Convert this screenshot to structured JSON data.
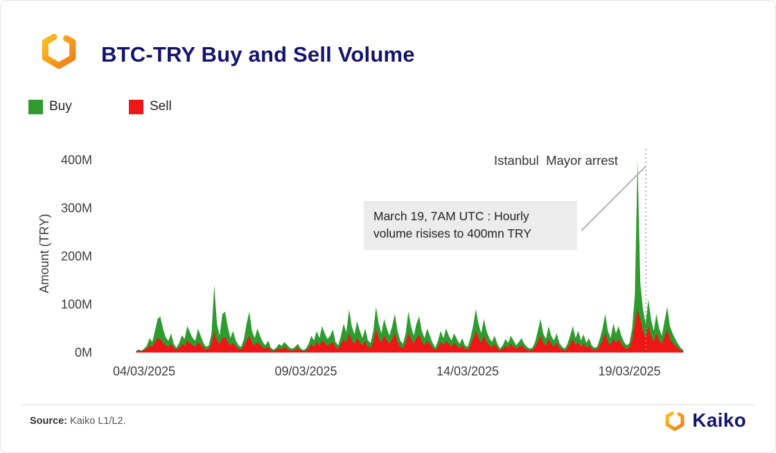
{
  "header": {
    "title": "BTC-TRY Buy and Sell Volume"
  },
  "legend": {
    "buy": {
      "label": "Buy",
      "color": "#2e9b2e"
    },
    "sell": {
      "label": "Sell",
      "color": "#ee1616"
    }
  },
  "annotations": {
    "arrest_label": "Istanbul  Mayor arrest",
    "callout": "March 19, 7AM UTC : Hourly\nvolume risises to 400mn TRY"
  },
  "footer": {
    "source_label": "Source:",
    "source_text": " Kaiko L1/L2.",
    "brand": "Kaiko"
  },
  "chart_data": {
    "type": "area",
    "title": "BTC-TRY Buy and Sell Volume",
    "xlabel": "",
    "ylabel": "Amount (TRY)",
    "unit": "millions of TRY, hourly volume",
    "ylim": [
      0,
      430
    ],
    "grid": false,
    "legend_position": "top-left",
    "yticks": [
      {
        "value": 0,
        "label": "0M"
      },
      {
        "value": 100,
        "label": "100M"
      },
      {
        "value": 200,
        "label": "200M"
      },
      {
        "value": 300,
        "label": "300M"
      },
      {
        "value": 400,
        "label": "400M"
      }
    ],
    "xticks": [
      {
        "day": 4,
        "label": "04/03/2025"
      },
      {
        "day": 9,
        "label": "09/03/2025"
      },
      {
        "day": 14,
        "label": "14/03/2025"
      },
      {
        "day": 19,
        "label": "19/03/2025"
      }
    ],
    "x_start_day": 3.75,
    "points_per_day": 12,
    "annotations": [
      {
        "text": "Istanbul  Mayor arrest"
      },
      {
        "text": "March 19, 7AM UTC : Hourly volume risises to 400mn TRY"
      }
    ],
    "peak": {
      "date": "19/03/2025 07:00 UTC",
      "value": 400,
      "series": "Buy"
    },
    "series": [
      {
        "name": "Buy",
        "color": "#2e9b2e",
        "values": [
          3,
          6,
          4,
          8,
          14,
          30,
          22,
          45,
          70,
          75,
          50,
          32,
          24,
          40,
          18,
          10,
          20,
          36,
          28,
          55,
          42,
          30,
          24,
          50,
          35,
          20,
          12,
          15,
          40,
          140,
          60,
          35,
          80,
          85,
          55,
          30,
          45,
          25,
          15,
          12,
          28,
          60,
          85,
          45,
          30,
          50,
          35,
          22,
          15,
          25,
          10,
          6,
          10,
          18,
          14,
          22,
          16,
          10,
          8,
          12,
          18,
          9,
          5,
          8,
          18,
          35,
          25,
          45,
          30,
          55,
          40,
          28,
          35,
          48,
          22,
          15,
          35,
          60,
          42,
          90,
          55,
          38,
          65,
          45,
          30,
          50,
          25,
          20,
          45,
          95,
          60,
          40,
          70,
          50,
          35,
          55,
          80,
          45,
          25,
          18,
          40,
          85,
          55,
          35,
          60,
          75,
          45,
          30,
          50,
          35,
          20,
          10,
          25,
          45,
          30,
          50,
          35,
          25,
          40,
          28,
          18,
          30,
          15,
          12,
          30,
          55,
          90,
          60,
          40,
          70,
          45,
          30,
          22,
          35,
          18,
          8,
          15,
          28,
          20,
          35,
          25,
          15,
          22,
          30,
          18,
          12,
          8,
          10,
          22,
          45,
          70,
          40,
          28,
          55,
          35,
          25,
          40,
          20,
          12,
          8,
          18,
          35,
          55,
          30,
          45,
          25,
          38,
          20,
          30,
          15,
          10,
          12,
          28,
          50,
          80,
          45,
          30,
          60,
          40,
          55,
          35,
          22,
          15,
          20,
          50,
          120,
          400,
          145,
          90,
          60,
          110,
          70,
          45,
          80,
          50,
          35,
          65,
          95,
          55,
          40,
          28,
          18,
          10,
          5
        ]
      },
      {
        "name": "Sell",
        "color": "#ee1616",
        "values": [
          2,
          4,
          3,
          5,
          8,
          15,
          12,
          22,
          30,
          28,
          20,
          15,
          12,
          18,
          9,
          6,
          10,
          18,
          14,
          25,
          20,
          15,
          12,
          22,
          16,
          10,
          6,
          8,
          18,
          45,
          25,
          18,
          30,
          32,
          22,
          15,
          20,
          12,
          8,
          6,
          14,
          25,
          35,
          20,
          15,
          22,
          16,
          10,
          8,
          12,
          5,
          3,
          5,
          9,
          7,
          11,
          8,
          5,
          4,
          6,
          9,
          5,
          3,
          4,
          9,
          18,
          12,
          22,
          15,
          25,
          20,
          14,
          18,
          22,
          10,
          8,
          18,
          28,
          20,
          40,
          25,
          18,
          30,
          22,
          15,
          24,
          12,
          10,
          22,
          48,
          30,
          20,
          35,
          25,
          18,
          28,
          40,
          22,
          12,
          9,
          20,
          40,
          28,
          18,
          30,
          38,
          22,
          15,
          25,
          18,
          10,
          5,
          12,
          22,
          15,
          25,
          18,
          12,
          20,
          14,
          9,
          15,
          8,
          6,
          15,
          28,
          45,
          30,
          20,
          35,
          22,
          15,
          11,
          18,
          9,
          4,
          8,
          14,
          10,
          18,
          12,
          8,
          11,
          15,
          9,
          6,
          4,
          5,
          11,
          22,
          35,
          20,
          14,
          28,
          18,
          12,
          20,
          10,
          6,
          4,
          9,
          18,
          28,
          15,
          22,
          12,
          19,
          10,
          15,
          8,
          5,
          6,
          14,
          25,
          40,
          22,
          15,
          30,
          20,
          28,
          18,
          11,
          8,
          10,
          25,
          60,
          90,
          70,
          45,
          30,
          55,
          35,
          22,
          40,
          25,
          18,
          32,
          48,
          28,
          20,
          14,
          9,
          5,
          3
        ]
      }
    ]
  }
}
